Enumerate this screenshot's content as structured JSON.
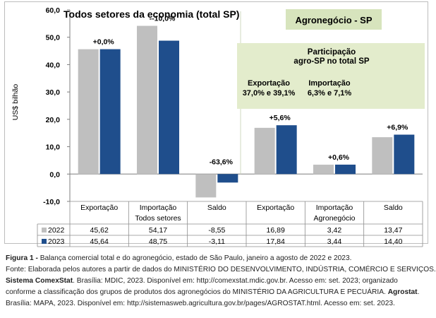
{
  "chart_data": {
    "type": "bar",
    "title": "Todos setores da economia (total SP)",
    "subtitle": "Agronegócio - SP",
    "ylabel": "US$  bilhão",
    "ylim": [
      -10,
      60
    ],
    "yticks": [
      "60,0",
      "50,0",
      "40,0",
      "30,0",
      "20,0",
      "10,0",
      "0,0",
      "-10,0"
    ],
    "ytick_values": [
      60,
      50,
      40,
      30,
      20,
      10,
      0,
      -10
    ],
    "categories": [
      "Exportação",
      "Importação",
      "Saldo",
      "Exportação",
      "Importação",
      "Saldo"
    ],
    "groups": [
      "Todos setores",
      "Agronegócio"
    ],
    "series": [
      {
        "name": "2022",
        "values": [
          45.62,
          54.17,
          -8.55,
          16.89,
          3.42,
          13.47
        ],
        "color": "#bfbfbf",
        "labels": [
          "45,62",
          "54,17",
          "-8,55",
          "16,89",
          "3,42",
          "13,47"
        ]
      },
      {
        "name": "2023",
        "values": [
          45.64,
          48.75,
          -3.11,
          17.84,
          3.44,
          14.4
        ],
        "color": "#1f4e8c",
        "labels": [
          "45,64",
          "48,75",
          "-3,11",
          "17,84",
          "3,44",
          "14,40"
        ]
      }
    ],
    "change_labels": [
      "+0,0%",
      "--10,0%",
      "-63,6%",
      "+5,6%",
      "+0,6%",
      "+6,9%"
    ],
    "legend": "table-below",
    "grid": false,
    "annotation_box": {
      "title_line1": "Participação",
      "title_line2": "agro-SP no total SP",
      "col1_title": "Exportação",
      "col1_values": "37,0% e 39,1%",
      "col2_title": "Importação",
      "col2_values": "6,3% e 7,1%"
    }
  },
  "caption": {
    "figure_label": "Figura 1 -",
    "figure_text": " Balança comercial total e do agronegócio, estado de São Paulo, janeiro a agosto de 2022 e 2023.",
    "line2": "Fonte: Elaborada pelos autores a partir de dados do MINISTÉRIO DO DESENVOLVIMENTO, INDÚSTRIA, COMÉRCIO E SERVIÇOS.",
    "line3_bold": "Sistema ComexStat",
    "line3_rest": ". Brasília: MDIC, 2023. Disponível em: http://comexstat.mdic.gov.br. Acesso em: set. 2023; organizado",
    "line4_a": "conforme a classificação dos grupos de produtos dos agronegócios do MINISTÉRIO DA AGRICULTURA E PECUÁRIA. ",
    "line4_bold": "Agrostat",
    "line4_b": ".",
    "line5": "Brasília: MAPA, 2023. Disponível em: http://sistemasweb.agricultura.gov.br/pages/AGROSTAT.html. Acesso em: set. 2023."
  }
}
